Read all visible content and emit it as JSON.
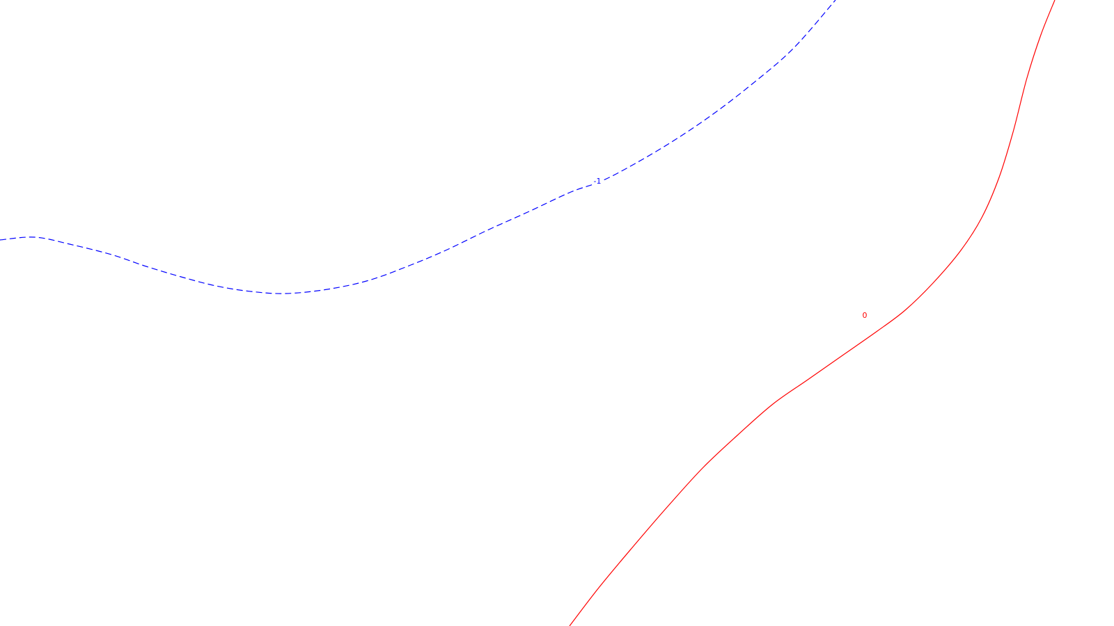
{
  "chart_data": {
    "type": "line",
    "title": "",
    "xlabel": "",
    "ylabel": "",
    "grid": false,
    "axes_visible": false,
    "series": [
      {
        "contour_level_label": "-1",
        "color": "#0000ff",
        "style": "dashed",
        "points": [
          [
            0,
            345
          ],
          [
            50,
            341
          ],
          [
            100,
            351
          ],
          [
            160,
            366
          ],
          [
            210,
            383
          ],
          [
            260,
            398
          ],
          [
            310,
            411
          ],
          [
            360,
            419
          ],
          [
            410,
            422
          ],
          [
            470,
            416
          ],
          [
            530,
            403
          ],
          [
            590,
            381
          ],
          [
            640,
            360
          ],
          [
            700,
            331
          ],
          [
            760,
            304
          ],
          [
            820,
            276
          ],
          [
            860,
            262
          ],
          [
            900,
            242
          ],
          [
            960,
            207
          ],
          [
            1020,
            167
          ],
          [
            1080,
            121
          ],
          [
            1140,
            69
          ],
          [
            1200,
            0
          ]
        ],
        "label_at": [
          858,
          262
        ]
      },
      {
        "contour_level_label": "0",
        "color": "#ff0000",
        "style": "solid",
        "points": [
          [
            818,
            900
          ],
          [
            860,
            845
          ],
          [
            910,
            785
          ],
          [
            960,
            727
          ],
          [
            1010,
            672
          ],
          [
            1060,
            625
          ],
          [
            1110,
            581
          ],
          [
            1160,
            546
          ],
          [
            1210,
            511
          ],
          [
            1260,
            476
          ],
          [
            1300,
            446
          ],
          [
            1340,
            407
          ],
          [
            1380,
            360
          ],
          [
            1410,
            313
          ],
          [
            1435,
            255
          ],
          [
            1455,
            190
          ],
          [
            1475,
            112
          ],
          [
            1495,
            50
          ],
          [
            1515,
            0
          ]
        ],
        "label_at": [
          1242,
          455
        ]
      }
    ]
  }
}
